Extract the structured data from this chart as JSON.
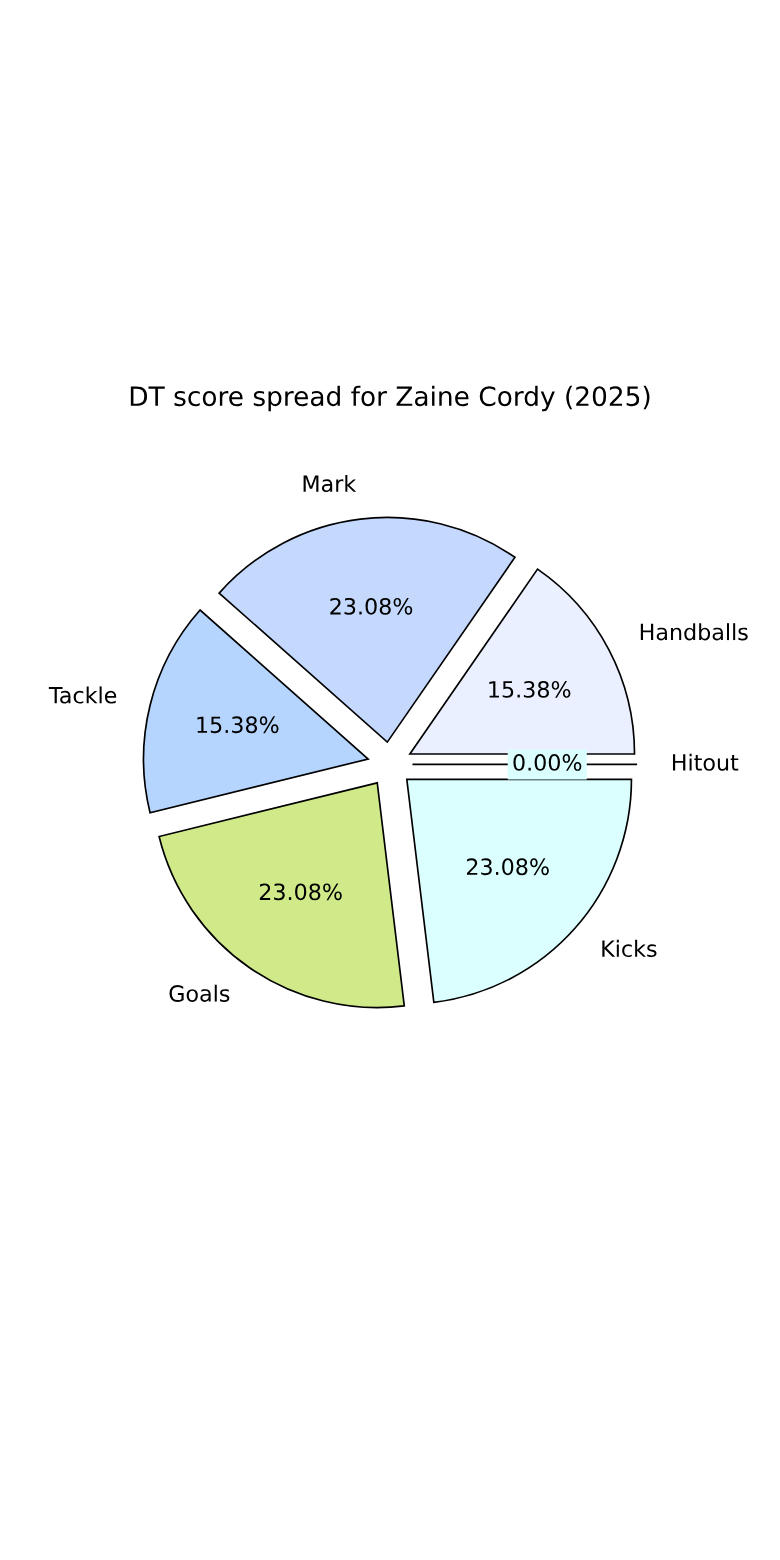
{
  "chart_data": {
    "type": "pie",
    "title": "DT score spread for Zaine Cordy (2025)",
    "categories": [
      "Handballs",
      "Mark",
      "Tackle",
      "Goals",
      "Kicks",
      "Hitout"
    ],
    "values": [
      15.38,
      23.08,
      15.38,
      23.08,
      23.08,
      0.0
    ],
    "value_labels": [
      "15.38%",
      "23.08%",
      "15.38%",
      "23.08%",
      "23.08%",
      "0.00%"
    ],
    "colors": [
      "#eaf0ff",
      "#c5d9ff",
      "#b5d5ff",
      "#d0ea8a",
      "#dbffff",
      "#dbffff"
    ],
    "legend": false
  }
}
